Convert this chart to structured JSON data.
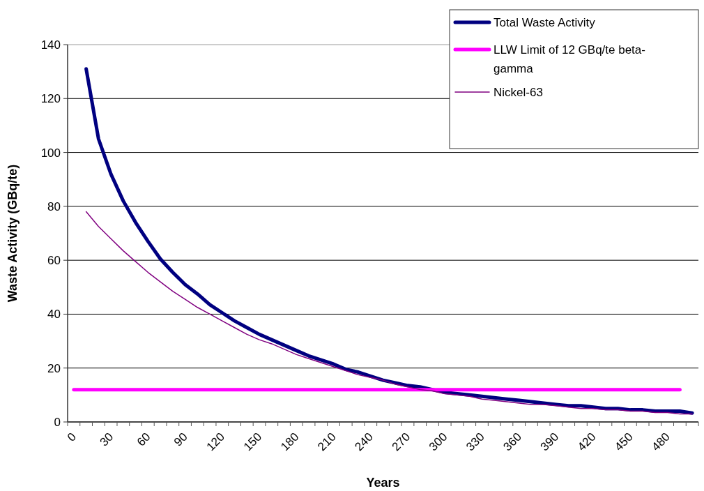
{
  "chart_data": {
    "type": "line",
    "xlabel": "Years",
    "ylabel": "Waste Activity (GBq/te)",
    "categories": [
      "0",
      null,
      null,
      "30",
      null,
      null,
      "60",
      null,
      null,
      "90",
      null,
      null,
      "120",
      null,
      null,
      "150",
      null,
      null,
      "180",
      null,
      null,
      "210",
      null,
      null,
      "240",
      null,
      null,
      "270",
      null,
      null,
      "300",
      null,
      null,
      "330",
      null,
      null,
      "360",
      null,
      null,
      "390",
      null,
      null,
      "420",
      null,
      null,
      "450",
      null,
      null,
      "480",
      null,
      null
    ],
    "ylim": [
      0,
      140
    ],
    "yticks": [
      0,
      20,
      40,
      60,
      80,
      100,
      120,
      140
    ],
    "grid": "y",
    "legend": "top right",
    "marker": "none",
    "series": [
      {
        "name": "Total Waste Activity",
        "color": "#000080",
        "values": [
          null,
          131,
          105,
          92,
          82,
          74,
          67,
          60.5,
          55.5,
          51,
          47.5,
          43.5,
          40.5,
          37.5,
          35,
          32.5,
          30.5,
          28.5,
          26.5,
          24.5,
          23,
          21.5,
          19.5,
          18.5,
          17,
          15.5,
          14.5,
          13.5,
          13,
          12,
          11,
          10.5,
          10,
          9.5,
          9,
          8.5,
          8,
          7.5,
          7,
          6.5,
          6,
          6,
          5.5,
          5,
          5,
          4.5,
          4.5,
          4,
          4,
          4,
          3.3
        ]
      },
      {
        "name": "LLW Limit of 12 GBq/te beta-gamma",
        "color": "#ff00ff",
        "values": [
          12,
          12,
          12,
          12,
          12,
          12,
          12,
          12,
          12,
          12,
          12,
          12,
          12,
          12,
          12,
          12,
          12,
          12,
          12,
          12,
          12,
          12,
          12,
          12,
          12,
          12,
          12,
          12,
          12,
          12,
          12,
          12,
          12,
          12,
          12,
          12,
          12,
          12,
          12,
          12,
          12,
          12,
          12,
          12,
          12,
          12,
          12,
          12,
          12,
          12,
          null
        ]
      },
      {
        "name": "Nickel-63",
        "color": "#800080",
        "values": [
          null,
          78,
          72.5,
          68,
          63.5,
          59.5,
          55.5,
          52,
          48.5,
          45.5,
          42.5,
          40,
          37.5,
          35,
          32.5,
          30.5,
          29,
          27,
          25,
          23.5,
          22,
          20.5,
          19,
          17.5,
          16.5,
          15.5,
          14,
          13,
          12,
          11.5,
          10.5,
          10,
          9.5,
          8.5,
          8,
          7.5,
          7,
          6.5,
          6.5,
          6,
          5.5,
          5,
          5,
          4.5,
          4.5,
          4,
          4,
          3.5,
          3.5,
          3,
          3
        ]
      }
    ]
  }
}
